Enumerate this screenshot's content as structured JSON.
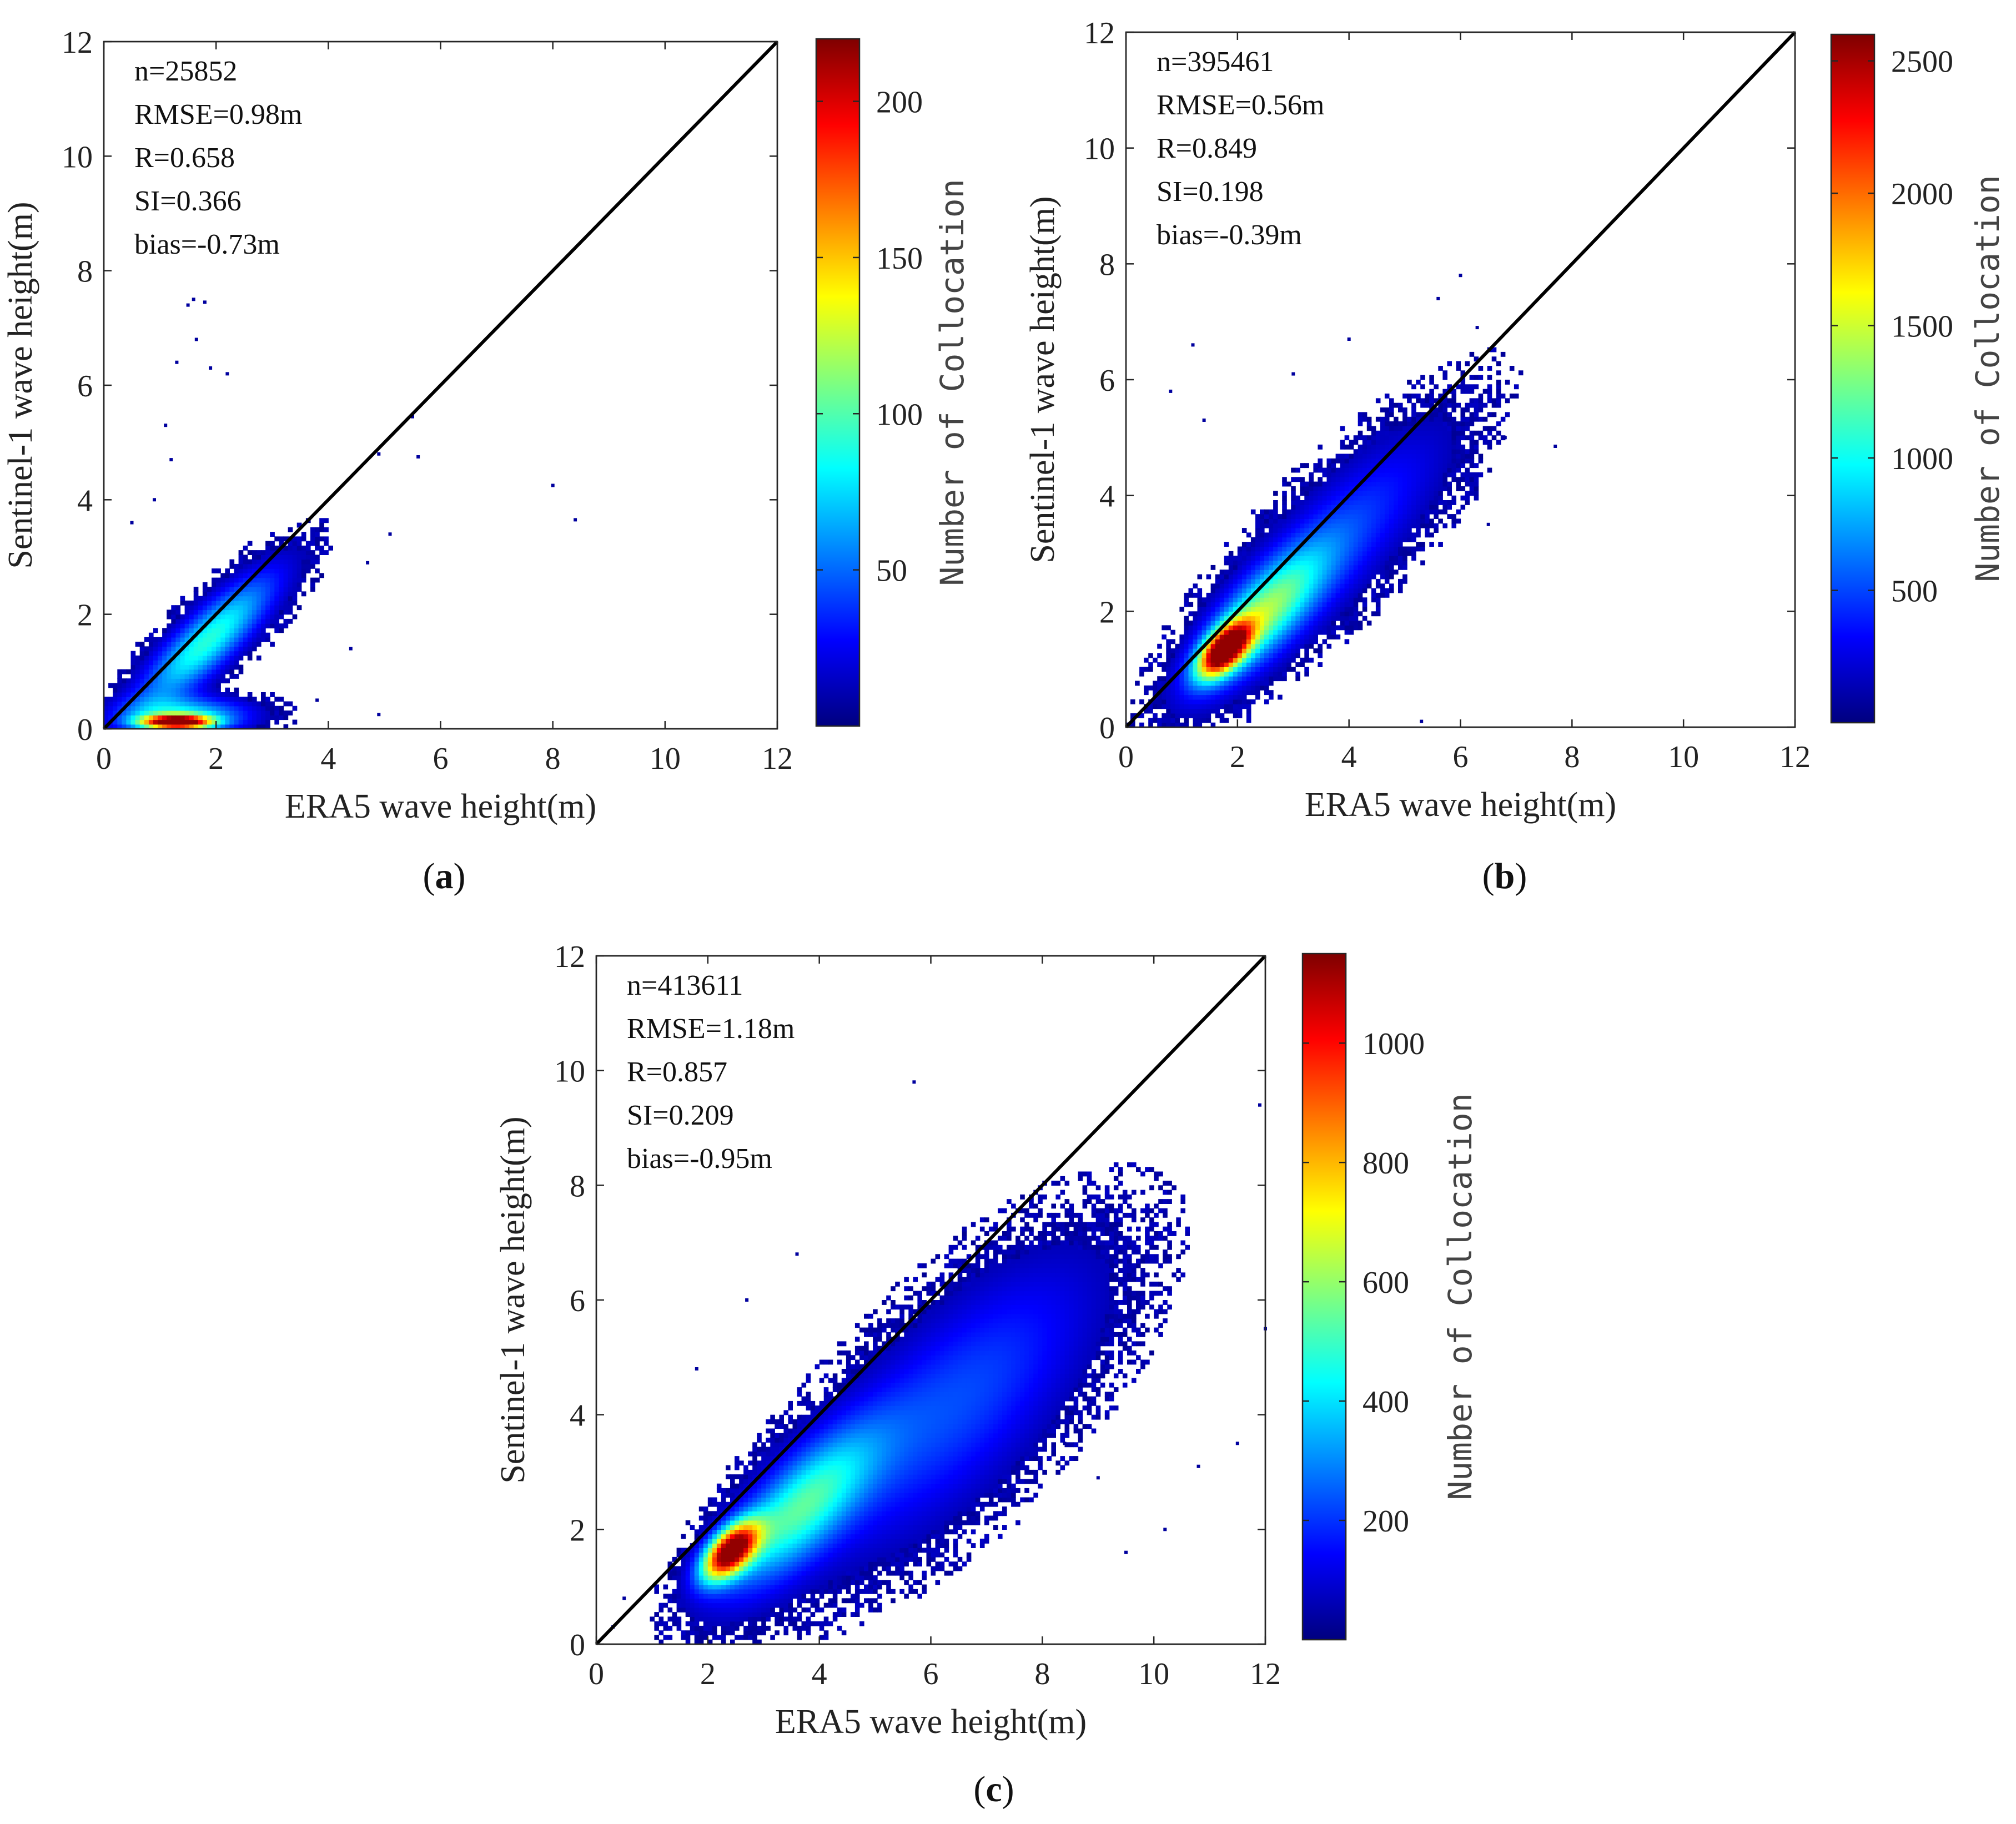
{
  "figure": {
    "colormap": [
      "#00007f",
      "#0000ff",
      "#007fff",
      "#00ffff",
      "#7fff7f",
      "#ffff00",
      "#ff7f00",
      "#ff0000",
      "#7f0000"
    ],
    "diagonal_color": "#000000"
  },
  "chart_data": [
    {
      "id": "a",
      "type": "heatmap",
      "subtype": "density-scatter",
      "panel_label": "a",
      "xlabel": "ERA5 wave height(m)",
      "ylabel": "Sentinel-1 wave height(m)",
      "xlim": [
        0,
        12
      ],
      "ylim": [
        0,
        12
      ],
      "xticks": [
        0,
        2,
        4,
        6,
        8,
        10,
        12
      ],
      "yticks": [
        0,
        2,
        4,
        6,
        8,
        10,
        12
      ],
      "reference_line": "y = x",
      "stats": [
        "n=25852",
        "RMSE=0.98m",
        "R=0.658",
        "SI=0.366",
        "bias=-0.73m"
      ],
      "colorbar": {
        "label": "Number of Collocation",
        "range": [
          0,
          220
        ],
        "ticks": [
          50,
          100,
          150,
          200
        ]
      },
      "density_peaks": [
        {
          "x": 1.2,
          "y": 0.15,
          "count": 220
        },
        {
          "x": 1.8,
          "y": 1.5,
          "count": 80
        }
      ],
      "outliers": [
        [
          1.6,
          7.5
        ],
        [
          1.8,
          7.45
        ],
        [
          1.5,
          7.4
        ],
        [
          1.65,
          6.8
        ],
        [
          1.3,
          6.4
        ],
        [
          1.9,
          6.3
        ],
        [
          2.2,
          6.2
        ],
        [
          1.1,
          5.3
        ],
        [
          8.0,
          4.25
        ],
        [
          8.4,
          3.65
        ],
        [
          5.5,
          5.45
        ],
        [
          4.9,
          4.8
        ],
        [
          5.6,
          4.75
        ],
        [
          4.7,
          2.9
        ],
        [
          5.1,
          3.4
        ],
        [
          4.4,
          1.4
        ],
        [
          3.8,
          0.5
        ],
        [
          4.9,
          0.25
        ],
        [
          0.9,
          4.0
        ],
        [
          1.2,
          4.7
        ],
        [
          0.5,
          3.6
        ]
      ]
    },
    {
      "id": "b",
      "type": "heatmap",
      "subtype": "density-scatter",
      "panel_label": "b",
      "xlabel": "ERA5 wave height(m)",
      "ylabel": "Sentinel-1 wave height(m)",
      "xlim": [
        0,
        12
      ],
      "ylim": [
        0,
        12
      ],
      "xticks": [
        0,
        2,
        4,
        6,
        8,
        10,
        12
      ],
      "yticks": [
        0,
        2,
        4,
        6,
        8,
        10,
        12
      ],
      "reference_line": "y = x",
      "stats": [
        "n=395461",
        "RMSE=0.56m",
        "R=0.849",
        "SI=0.198",
        "bias=-0.39m"
      ],
      "colorbar": {
        "label": "Number of Collocation",
        "range": [
          0,
          2600
        ],
        "ticks": [
          500,
          1000,
          1500,
          2000,
          2500
        ]
      },
      "density_peaks": [
        {
          "x": 1.8,
          "y": 1.35,
          "count": 2600
        }
      ],
      "outliers": [
        [
          1.2,
          6.6
        ],
        [
          0.8,
          5.8
        ],
        [
          1.4,
          5.3
        ],
        [
          7.7,
          4.85
        ],
        [
          6.0,
          7.8
        ],
        [
          5.6,
          7.4
        ],
        [
          6.3,
          6.9
        ],
        [
          4.0,
          6.7
        ],
        [
          3.0,
          6.1
        ],
        [
          5.3,
          0.1
        ],
        [
          6.8,
          5.0
        ],
        [
          6.5,
          3.5
        ]
      ]
    },
    {
      "id": "c",
      "type": "heatmap",
      "subtype": "density-scatter",
      "panel_label": "c",
      "xlabel": "ERA5 wave height(m)",
      "ylabel": "Sentinel-1 wave height(m)",
      "xlim": [
        0,
        12
      ],
      "ylim": [
        0,
        12
      ],
      "xticks": [
        0,
        2,
        4,
        6,
        8,
        10,
        12
      ],
      "yticks": [
        0,
        2,
        4,
        6,
        8,
        10,
        12
      ],
      "reference_line": "y = x",
      "stats": [
        "n=413611",
        "RMSE=1.18m",
        "R=0.857",
        "SI=0.209",
        "bias=-0.95m"
      ],
      "colorbar": {
        "label": "Number of Collocation",
        "range": [
          0,
          1150
        ],
        "ticks": [
          200,
          400,
          600,
          800,
          1000
        ]
      },
      "density_peaks": [
        {
          "x": 2.4,
          "y": 1.6,
          "count": 1150
        }
      ],
      "outliers": [
        [
          5.7,
          9.8
        ],
        [
          10.2,
          2.0
        ],
        [
          11.9,
          9.4
        ],
        [
          0.3,
          0.3
        ],
        [
          0.5,
          0.8
        ],
        [
          1.8,
          4.8
        ],
        [
          2.7,
          6.0
        ],
        [
          3.6,
          6.8
        ],
        [
          9.5,
          1.6
        ],
        [
          11.5,
          3.5
        ],
        [
          12.0,
          5.5
        ],
        [
          8.4,
          3.5
        ],
        [
          9.0,
          2.9
        ],
        [
          10.8,
          3.1
        ]
      ]
    }
  ]
}
